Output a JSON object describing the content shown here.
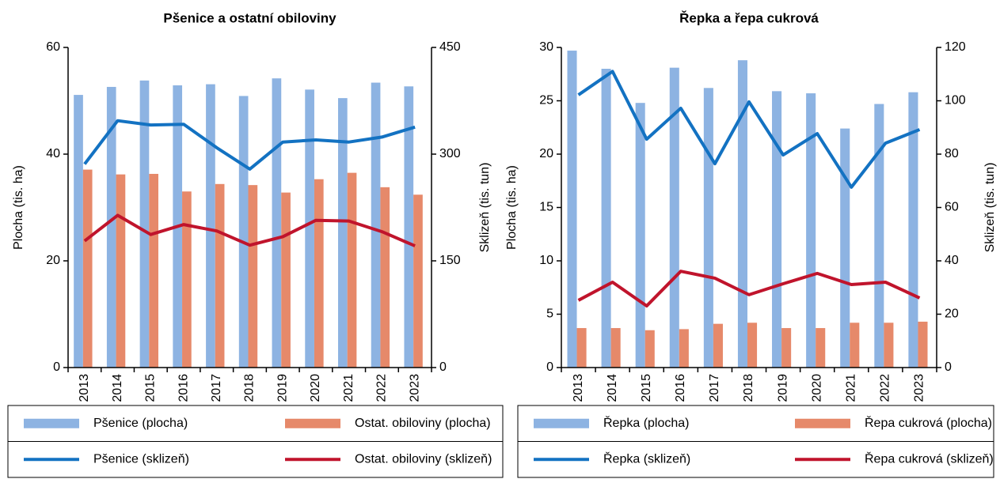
{
  "chart_data": [
    {
      "type": "combo",
      "title": "Pšenice a ostatní obiloviny",
      "y_label": "Plocha (tis. ha)",
      "y2_label": "Sklizeň (tis. tun)",
      "categories": [
        "2013",
        "2014",
        "2015",
        "2016",
        "2017",
        "2018",
        "2019",
        "2020",
        "2021",
        "2022",
        "2023"
      ],
      "ylim": [
        0,
        60
      ],
      "yticks": [
        0,
        20,
        40,
        60
      ],
      "y2lim": [
        0,
        450
      ],
      "y2ticks": [
        0,
        150,
        300,
        450
      ],
      "legend": "bottom",
      "series": [
        {
          "name": "Pšenice (plocha)",
          "type": "bar",
          "color": "#8db3e2",
          "values": [
            51.1,
            52.6,
            53.8,
            52.9,
            53.1,
            50.9,
            54.2,
            52.1,
            50.5,
            53.4,
            52.7
          ]
        },
        {
          "name": "Ostat. obiloviny (plocha)",
          "type": "bar",
          "color": "#e6896a",
          "values": [
            37.1,
            36.2,
            36.3,
            33.0,
            34.4,
            34.2,
            32.8,
            35.3,
            36.5,
            33.8,
            32.4
          ]
        },
        {
          "name": "Pšenice (sklizeň)",
          "type": "line",
          "axis": "y2",
          "color": "#1372c2",
          "values": [
            286,
            347,
            341,
            342,
            309,
            279,
            317,
            320,
            317,
            324,
            338
          ]
        },
        {
          "name": "Ostat. obiloviny (sklizeň)",
          "type": "line",
          "axis": "y2",
          "color": "#c0142c",
          "values": [
            178,
            214,
            187,
            201,
            192,
            172,
            184,
            207,
            206,
            191,
            171
          ]
        }
      ]
    },
    {
      "type": "combo",
      "title": "Řepka a řepa cukrová",
      "y_label": "Plocha (tis. ha)",
      "y2_label": "Sklizeň (tis. tun)",
      "categories": [
        "2013",
        "2014",
        "2015",
        "2016",
        "2017",
        "2018",
        "2019",
        "2020",
        "2021",
        "2022",
        "2023"
      ],
      "ylim": [
        0,
        30
      ],
      "yticks": [
        0,
        5,
        10,
        15,
        20,
        25,
        30
      ],
      "y2lim": [
        0,
        120
      ],
      "y2ticks": [
        0,
        20,
        40,
        60,
        80,
        100,
        120
      ],
      "legend": "bottom",
      "series": [
        {
          "name": "Řepka (plocha)",
          "type": "bar",
          "color": "#8db3e2",
          "values": [
            29.7,
            28.0,
            24.8,
            28.1,
            26.2,
            28.8,
            25.9,
            25.7,
            22.4,
            24.7,
            25.8
          ]
        },
        {
          "name": "Řepa cukrová (plocha)",
          "type": "bar",
          "color": "#e6896a",
          "values": [
            3.7,
            3.7,
            3.5,
            3.6,
            4.1,
            4.2,
            3.7,
            3.7,
            4.2,
            4.2,
            4.3
          ]
        },
        {
          "name": "Řepka (sklizeň)",
          "type": "line",
          "axis": "y2",
          "color": "#1372c2",
          "values": [
            102.2,
            111.0,
            85.6,
            97.2,
            76.4,
            99.6,
            79.7,
            87.7,
            67.6,
            84.1,
            89.2
          ]
        },
        {
          "name": "Řepa cukrová (sklizeň)",
          "type": "line",
          "axis": "y2",
          "color": "#c0142c",
          "values": [
            25.2,
            32.0,
            23.1,
            36.1,
            33.5,
            27.3,
            31.4,
            35.3,
            31.1,
            32.0,
            26.1
          ]
        }
      ]
    }
  ]
}
